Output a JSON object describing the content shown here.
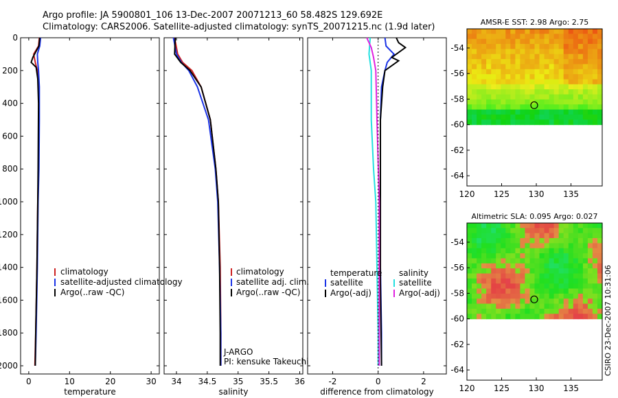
{
  "header": {
    "line1": "Argo profile: JA 5900801_106 13-Dec-2007 20071213_60 58.482S 129.692E",
    "line2": "Climatology: CARS2006. Satellite-adjusted climatology: synTS_20071215.nc (1.9d later)"
  },
  "side_label": "CSIRO 23-Dec-2007 10:31:06",
  "colors": {
    "climatology": "#cc1f1f",
    "satellite": "#1a33e6",
    "argo": "#000000",
    "cyan": "#22e0e0",
    "magenta": "#e020e0"
  },
  "chart_data": [
    {
      "type": "line",
      "id": "temperature",
      "xlabel": "temperature",
      "xlim": [
        -2,
        32
      ],
      "ylim": [
        2050,
        0
      ],
      "xticks": [
        0,
        10,
        20,
        30
      ],
      "yticks": [
        0,
        200,
        400,
        600,
        800,
        1000,
        1200,
        1400,
        1600,
        1800,
        2000
      ],
      "legend": [
        "climatology",
        "satellite-adjusted climatology",
        "Argo(..raw -QC)"
      ],
      "series": [
        {
          "name": "climatology",
          "color": "#cc1f1f",
          "points": [
            [
              2.6,
              0
            ],
            [
              2.4,
              50
            ],
            [
              1.2,
              100
            ],
            [
              1.6,
              150
            ],
            [
              2.1,
              200
            ],
            [
              2.4,
              300
            ],
            [
              2.5,
              500
            ],
            [
              2.4,
              800
            ],
            [
              2.2,
              1000
            ],
            [
              2.0,
              1400
            ],
            [
              1.7,
              1800
            ],
            [
              1.5,
              2000
            ]
          ]
        },
        {
          "name": "satellite-adjusted climatology",
          "color": "#1a33e6",
          "points": [
            [
              2.9,
              0
            ],
            [
              2.7,
              50
            ],
            [
              2.1,
              100
            ],
            [
              2.2,
              150
            ],
            [
              2.4,
              200
            ],
            [
              2.6,
              300
            ],
            [
              2.6,
              500
            ],
            [
              2.5,
              800
            ],
            [
              2.3,
              1000
            ],
            [
              2.1,
              1400
            ],
            [
              1.8,
              1800
            ],
            [
              1.6,
              2000
            ]
          ]
        },
        {
          "name": "Argo(..raw -QC)",
          "color": "#000000",
          "points": [
            [
              2.7,
              0
            ],
            [
              2.5,
              50
            ],
            [
              1.0,
              120
            ],
            [
              0.6,
              150
            ],
            [
              1.8,
              180
            ],
            [
              2.2,
              250
            ],
            [
              2.4,
              400
            ],
            [
              2.3,
              800
            ],
            [
              2.2,
              1000
            ],
            [
              2.0,
              1400
            ],
            [
              1.7,
              1800
            ],
            [
              1.6,
              2000
            ]
          ]
        }
      ]
    },
    {
      "type": "line",
      "id": "salinity",
      "xlabel": "salinity",
      "xlim": [
        33.8,
        36.05
      ],
      "ylim": [
        2050,
        0
      ],
      "xticks": [
        34,
        34.5,
        35,
        35.5,
        36
      ],
      "legend": [
        "climatology",
        "satellite adj. clim.",
        "Argo(..raw -QC)"
      ],
      "annotation": [
        "J-ARGO",
        "PI: kensuke Takeuchi"
      ],
      "series": [
        {
          "name": "climatology",
          "color": "#cc1f1f",
          "points": [
            [
              33.97,
              0
            ],
            [
              34.02,
              100
            ],
            [
              34.1,
              150
            ],
            [
              34.25,
              200
            ],
            [
              34.4,
              300
            ],
            [
              34.55,
              500
            ],
            [
              34.64,
              800
            ],
            [
              34.68,
              1000
            ],
            [
              34.71,
              1400
            ],
            [
              34.72,
              1800
            ],
            [
              34.72,
              2000
            ]
          ]
        },
        {
          "name": "satellite adj. clim.",
          "color": "#1a33e6",
          "points": [
            [
              33.95,
              0
            ],
            [
              34.0,
              100
            ],
            [
              34.08,
              150
            ],
            [
              34.2,
              200
            ],
            [
              34.34,
              300
            ],
            [
              34.52,
              500
            ],
            [
              34.63,
              800
            ],
            [
              34.67,
              1000
            ],
            [
              34.7,
              1400
            ],
            [
              34.72,
              1800
            ],
            [
              34.72,
              2000
            ]
          ]
        },
        {
          "name": "Argo(..raw -QC)",
          "color": "#000000",
          "points": [
            [
              33.98,
              0
            ],
            [
              33.97,
              100
            ],
            [
              34.07,
              150
            ],
            [
              34.22,
              200
            ],
            [
              34.4,
              300
            ],
            [
              34.55,
              500
            ],
            [
              34.64,
              800
            ],
            [
              34.68,
              1000
            ],
            [
              34.7,
              1400
            ],
            [
              34.71,
              1800
            ],
            [
              34.71,
              2000
            ]
          ]
        }
      ]
    },
    {
      "type": "line",
      "id": "difference",
      "xlabel": "difference from climatology",
      "xlim": [
        -3.1,
        3.0
      ],
      "ylim": [
        2050,
        0
      ],
      "xticks": [
        -2,
        0,
        2
      ],
      "legend_left_title": "temperature",
      "legend_right_title": "salinity",
      "legend": [
        "satellite",
        "Argo(-adj)",
        "satellite",
        "Argo(-adj)"
      ],
      "series": [
        {
          "name": "temperature satellite",
          "color": "#1a33e6",
          "points": [
            [
              0.3,
              0
            ],
            [
              0.35,
              50
            ],
            [
              0.7,
              100
            ],
            [
              0.4,
              150
            ],
            [
              0.3,
              200
            ],
            [
              0.15,
              300
            ],
            [
              0.1,
              500
            ],
            [
              0.1,
              1000
            ],
            [
              0.1,
              1400
            ],
            [
              0.15,
              1800
            ],
            [
              0.15,
              2000
            ]
          ]
        },
        {
          "name": "temperature Argo(-adj)",
          "color": "#000000",
          "points": [
            [
              0.8,
              0
            ],
            [
              0.9,
              30
            ],
            [
              1.2,
              60
            ],
            [
              0.6,
              120
            ],
            [
              0.9,
              140
            ],
            [
              0.3,
              200
            ],
            [
              0.2,
              300
            ],
            [
              0.1,
              500
            ],
            [
              0.1,
              1000
            ],
            [
              0.1,
              1500
            ],
            [
              0.15,
              2000
            ]
          ]
        },
        {
          "name": "salinity satellite",
          "color": "#22e0e0",
          "points": [
            [
              -0.35,
              0
            ],
            [
              -0.4,
              100
            ],
            [
              -0.3,
              200
            ],
            [
              -0.3,
              500
            ],
            [
              -0.2,
              800
            ],
            [
              -0.1,
              1000
            ],
            [
              -0.05,
              1400
            ],
            [
              0.0,
              1800
            ],
            [
              0.0,
              2000
            ]
          ]
        },
        {
          "name": "salinity Argo(-adj)",
          "color": "#e020e0",
          "points": [
            [
              -0.5,
              0
            ],
            [
              -0.3,
              60
            ],
            [
              -0.2,
              120
            ],
            [
              -0.1,
              200
            ],
            [
              -0.05,
              500
            ],
            [
              0.05,
              1000
            ],
            [
              0.05,
              1400
            ],
            [
              0.05,
              1800
            ],
            [
              0.05,
              2000
            ]
          ]
        }
      ]
    },
    {
      "type": "heatmap",
      "id": "sst",
      "title": "AMSR-E SST: 2.98 Argo: 2.75",
      "xlim": [
        120,
        139.5
      ],
      "ylim": [
        -64.8,
        -52.5
      ],
      "xticks": [
        120,
        125,
        130,
        135
      ],
      "yticks": [
        -54,
        -56,
        -58,
        -60,
        -62,
        -64
      ],
      "data_lat_min": -60,
      "marker": {
        "lon": 129.7,
        "lat": -58.48
      }
    },
    {
      "type": "heatmap",
      "id": "sla",
      "title": "Altimetric SLA: 0.095 Argo: 0.027",
      "xlim": [
        120,
        139.5
      ],
      "ylim": [
        -64.8,
        -52.5
      ],
      "xticks": [
        120,
        125,
        130,
        135
      ],
      "yticks": [
        -54,
        -56,
        -58,
        -60,
        -62,
        -64
      ],
      "data_lat_min": -60,
      "marker": {
        "lon": 129.7,
        "lat": -58.48
      }
    }
  ]
}
